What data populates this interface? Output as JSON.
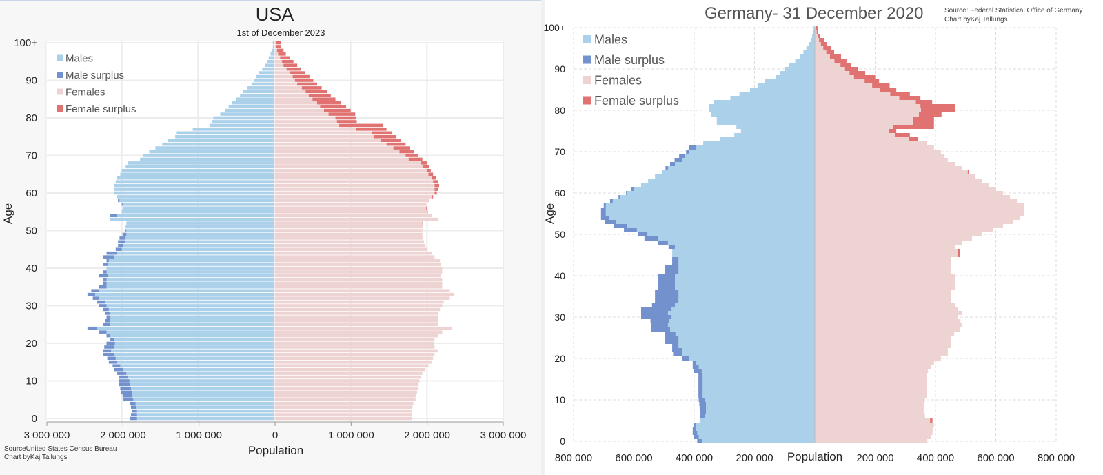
{
  "colors": {
    "males": "#abd0ea",
    "male_surplus": "#7391cc",
    "females": "#eed3d3",
    "female_surplus": "#e07272"
  },
  "chart_data": [
    {
      "type": "bar",
      "subtype": "population-pyramid",
      "title": "USA",
      "subtitle": "1st of December 2023",
      "xlabel": "Population",
      "ylabel": "Age",
      "xlim": [
        -3000000,
        3000000
      ],
      "x_ticks": [
        "3 000 000",
        "2 000 000",
        "1 000 000",
        "0",
        "1 000 000",
        "2 000 000",
        "3 000 000"
      ],
      "y_ticks": [
        "0",
        "10",
        "20",
        "30",
        "40",
        "50",
        "60",
        "70",
        "80",
        "90",
        "100+"
      ],
      "legend": [
        "Males",
        "Male surplus",
        "Females",
        "Female surplus"
      ],
      "legend_position": "top-left",
      "grid": true,
      "source": "SourceUnited States Census Bureau",
      "credit": "Chart byKaj Tallungs",
      "units": "thousands",
      "ages": "0-100 (100 = 100+)",
      "males": [
        1890,
        1880,
        1870,
        1880,
        1890,
        1980,
        1990,
        2010,
        2020,
        2040,
        2040,
        2040,
        2060,
        2100,
        2120,
        2170,
        2190,
        2250,
        2250,
        2230,
        2200,
        2150,
        2200,
        2300,
        2450,
        2250,
        2220,
        2200,
        2220,
        2250,
        2300,
        2330,
        2380,
        2450,
        2400,
        2300,
        2250,
        2250,
        2300,
        2250,
        2200,
        2250,
        2200,
        2250,
        2200,
        2080,
        2050,
        2050,
        2030,
        1990,
        1950,
        1950,
        1940,
        2150,
        2150,
        2000,
        1990,
        2000,
        2050,
        2060,
        2100,
        2100,
        2100,
        2080,
        2060,
        2020,
        2000,
        1950,
        1920,
        1760,
        1720,
        1640,
        1560,
        1470,
        1400,
        1300,
        1280,
        1070,
        850,
        820,
        800,
        710,
        650,
        600,
        560,
        500,
        450,
        410,
        360,
        300,
        270,
        240,
        200,
        160,
        120,
        100,
        75,
        50,
        35,
        20,
        20
      ],
      "females": [
        1800,
        1800,
        1800,
        1810,
        1820,
        1850,
        1860,
        1870,
        1880,
        1890,
        1900,
        1920,
        1940,
        1980,
        2020,
        2060,
        2080,
        2100,
        2140,
        2100,
        2090,
        2100,
        2150,
        2200,
        2330,
        2150,
        2150,
        2150,
        2150,
        2170,
        2200,
        2220,
        2300,
        2350,
        2300,
        2200,
        2200,
        2200,
        2180,
        2200,
        2200,
        2180,
        2170,
        2100,
        2060,
        2000,
        1980,
        1960,
        1950,
        1940,
        1940,
        1950,
        1950,
        2150,
        2060,
        2010,
        2000,
        1990,
        2030,
        2080,
        2130,
        2150,
        2160,
        2150,
        2120,
        2080,
        2050,
        2030,
        2000,
        1940,
        1880,
        1830,
        1780,
        1720,
        1660,
        1600,
        1540,
        1470,
        1420,
        1080,
        1070,
        1060,
        1000,
        940,
        870,
        800,
        740,
        690,
        620,
        560,
        510,
        460,
        400,
        350,
        300,
        250,
        200,
        150,
        120,
        90,
        90
      ]
    },
    {
      "type": "bar",
      "subtype": "population-pyramid",
      "title": "Germany- 31 December 2020",
      "xlabel": "Population",
      "ylabel": "Age",
      "xlim": [
        -800000,
        800000
      ],
      "x_ticks": [
        "800 000",
        "600 000",
        "400 000",
        "200 000",
        "200 000",
        "400 000",
        "600 000",
        "800 000"
      ],
      "y_ticks": [
        "0",
        "10",
        "20",
        "30",
        "40",
        "50",
        "60",
        "70",
        "80",
        "90",
        "100+"
      ],
      "legend": [
        "Males",
        "Male surplus",
        "Females",
        "Female surplus"
      ],
      "legend_position": "top-left",
      "grid": true,
      "source": "Source: Federal Statistical Office of Germany",
      "credit": "Chart byKaj Tallungs",
      "units": "thousands",
      "ages": "0-100 (100 = 100+)",
      "males": [
        390,
        400,
        405,
        405,
        400,
        382,
        380,
        380,
        382,
        383,
        385,
        386,
        386,
        386,
        386,
        386,
        386,
        400,
        405,
        405,
        440,
        470,
        473,
        473,
        496,
        496,
        496,
        542,
        542,
        545,
        576,
        576,
        576,
        540,
        530,
        530,
        530,
        519,
        519,
        519,
        519,
        496,
        496,
        473,
        473,
        473,
        473,
        485,
        519,
        565,
        587,
        633,
        667,
        695,
        709,
        709,
        709,
        700,
        679,
        651,
        626,
        610,
        576,
        553,
        530,
        507,
        495,
        480,
        465,
        450,
        427,
        416,
        370,
        313,
        267,
        245,
        260,
        325,
        325,
        345,
        352,
        350,
        335,
        280,
        250,
        215,
        190,
        165,
        130,
        115,
        100,
        85,
        65,
        50,
        38,
        28,
        20,
        14,
        9,
        6,
        4
      ],
      "females": [
        373,
        385,
        390,
        393,
        395,
        390,
        365,
        361,
        361,
        361,
        365,
        372,
        372,
        372,
        372,
        372,
        372,
        375,
        385,
        395,
        418,
        441,
        441,
        452,
        452,
        452,
        462,
        480,
        487,
        483,
        475,
        487,
        475,
        464,
        452,
        452,
        452,
        464,
        464,
        464,
        464,
        452,
        452,
        452,
        452,
        480,
        480,
        464,
        487,
        521,
        555,
        590,
        624,
        658,
        681,
        693,
        693,
        693,
        670,
        647,
        624,
        601,
        578,
        555,
        532,
        510,
        487,
        464,
        441,
        430,
        418,
        395,
        372,
        343,
        315,
        270,
        395,
        395,
        395,
        420,
        464,
        464,
        389,
        350,
        315,
        270,
        248,
        213,
        200,
        167,
        144,
        121,
        105,
        87,
        64,
        53,
        41,
        30,
        18,
        11,
        9
      ]
    }
  ]
}
